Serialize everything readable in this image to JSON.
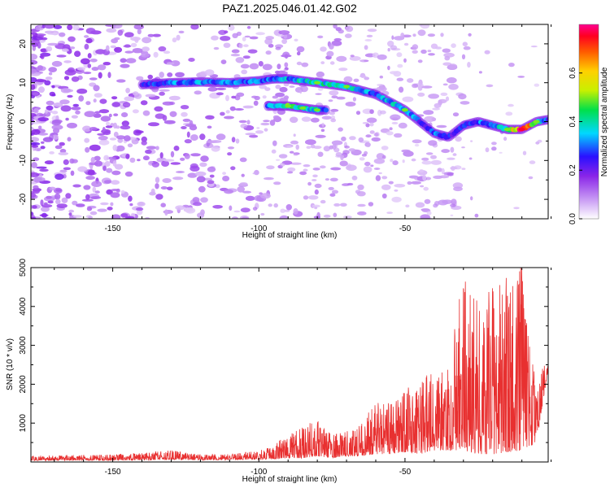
{
  "figure": {
    "title": "PAZ1.2025.046.01.42.G02"
  },
  "chart_data": [
    {
      "type": "heatmap",
      "xlabel": "Height of straight line (km)",
      "ylabel": "Frequency (Hz)",
      "xlim": [
        -178,
        -1
      ],
      "ylim": [
        -25,
        25
      ],
      "xticks": [
        -150,
        -100,
        -50
      ],
      "yticks": [
        -20,
        -10,
        0,
        10,
        20
      ],
      "colorbar": {
        "label": "Normalized spectral amplitude",
        "range": [
          0.0,
          0.8
        ],
        "ticks": [
          0.0,
          0.2,
          0.4,
          0.6
        ]
      },
      "ridge": {
        "x": [
          -140,
          -130,
          -120,
          -110,
          -100,
          -95,
          -90,
          -80,
          -70,
          -60,
          -55,
          -50,
          -45,
          -40,
          -35,
          -30,
          -25,
          -20,
          -15,
          -10,
          -5,
          -1
        ],
        "freq": [
          9.5,
          10,
          10.2,
          10,
          10.5,
          11,
          11,
          10,
          9,
          7,
          5,
          3,
          0,
          -3,
          -4,
          -1,
          0,
          -1,
          -2,
          -2,
          0,
          0.5
        ],
        "amplitude": [
          0.25,
          0.3,
          0.35,
          0.3,
          0.3,
          0.3,
          0.35,
          0.4,
          0.4,
          0.3,
          0.35,
          0.4,
          0.25,
          0.3,
          0.25,
          0.25,
          0.3,
          0.35,
          0.4,
          0.8,
          0.45,
          0.3
        ]
      },
      "secondary_branch": {
        "x": [
          -97,
          -90,
          -85,
          -80,
          -77
        ],
        "freq": [
          4,
          4,
          3.5,
          3,
          3
        ],
        "amplitude": [
          0.3,
          0.45,
          0.4,
          0.4,
          0.3
        ]
      }
    },
    {
      "type": "line",
      "xlabel": "Height of straight line (km)",
      "ylabel": "SNR (10 * v/v)",
      "xlim": [
        -178,
        -1
      ],
      "ylim": [
        0,
        5000
      ],
      "xticks": [
        -150,
        -100,
        -50
      ],
      "yticks": [
        1000,
        2000,
        3000,
        4000,
        5000
      ],
      "color": "#e83030",
      "series": [
        {
          "x": [
            -178,
            -170,
            -160,
            -150,
            -140,
            -130,
            -120,
            -110,
            -100,
            -95,
            -90,
            -85,
            -80,
            -75,
            -70,
            -65,
            -60,
            -55,
            -50,
            -45,
            -40,
            -35,
            -30,
            -25,
            -20,
            -15,
            -10,
            -5,
            -1
          ],
          "envelope_high": [
            160,
            170,
            180,
            190,
            230,
            300,
            200,
            220,
            280,
            450,
            700,
            900,
            1100,
            700,
            800,
            1000,
            1600,
            1500,
            1900,
            2100,
            2400,
            2600,
            4900,
            4100,
            4700,
            4900,
            5000,
            1900,
            2900
          ],
          "envelope_low": [
            40,
            40,
            40,
            40,
            50,
            60,
            50,
            60,
            60,
            80,
            100,
            100,
            150,
            100,
            150,
            150,
            200,
            200,
            250,
            200,
            300,
            300,
            300,
            200,
            200,
            250,
            300,
            500,
            2400
          ]
        }
      ]
    }
  ]
}
